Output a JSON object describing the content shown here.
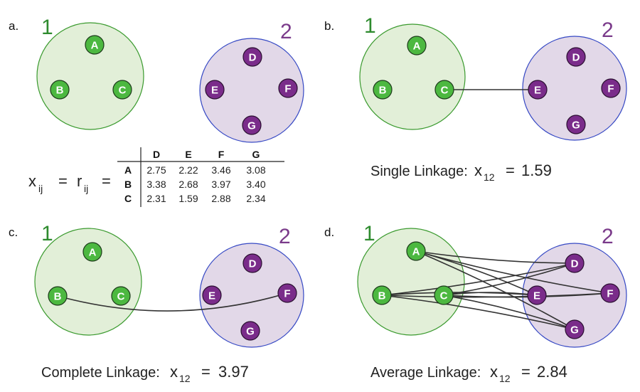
{
  "colors": {
    "cluster1_fill": "#e2efd8",
    "cluster1_stroke": "#3a9a2e",
    "cluster2_fill": "#e2d8e8",
    "cluster2_stroke": "#3548c4",
    "node1_fill": "#4cb840",
    "node2_fill": "#7a2c8a",
    "edge": "#333333",
    "label1": "#2e8b2e",
    "label2": "#7a3a8a"
  },
  "panels": {
    "a": {
      "label": "a.",
      "cluster1_label": "1",
      "cluster2_label": "2",
      "formula": {
        "x": "x",
        "x_sub": "ij",
        "equals": "=",
        "r": "r",
        "r_sub": "ij",
        "equals2": "="
      },
      "table": {
        "columns": [
          "D",
          "E",
          "F",
          "G"
        ],
        "rows": [
          {
            "label": "A",
            "values": [
              "2.75",
              "2.22",
              "3.46",
              "3.08"
            ]
          },
          {
            "label": "B",
            "values": [
              "3.38",
              "2.68",
              "3.97",
              "3.40"
            ]
          },
          {
            "label": "C",
            "values": [
              "2.31",
              "1.59",
              "2.88",
              "2.34"
            ]
          }
        ]
      }
    },
    "b": {
      "label": "b.",
      "cluster1_label": "1",
      "cluster2_label": "2",
      "caption_prefix": "Single Linkage:",
      "x": "x",
      "x_sub": "12",
      "eq": "=",
      "value": "1.59",
      "edges": [
        [
          "C",
          "E"
        ]
      ]
    },
    "c": {
      "label": "c.",
      "cluster1_label": "1",
      "cluster2_label": "2",
      "caption_prefix": "Complete Linkage:",
      "x": "x",
      "x_sub": "12",
      "eq": "=",
      "value": "3.97",
      "edges": [
        [
          "B",
          "F"
        ]
      ]
    },
    "d": {
      "label": "d.",
      "cluster1_label": "1",
      "cluster2_label": "2",
      "caption_prefix": "Average Linkage:",
      "x": "x",
      "x_sub": "12",
      "eq": "=",
      "value": "2.84",
      "edges": [
        [
          "A",
          "D"
        ],
        [
          "A",
          "E"
        ],
        [
          "A",
          "F"
        ],
        [
          "A",
          "G"
        ],
        [
          "B",
          "D"
        ],
        [
          "B",
          "E"
        ],
        [
          "B",
          "F"
        ],
        [
          "B",
          "G"
        ],
        [
          "C",
          "D"
        ],
        [
          "C",
          "E"
        ],
        [
          "C",
          "F"
        ],
        [
          "C",
          "G"
        ]
      ]
    }
  },
  "nodes": {
    "A": "A",
    "B": "B",
    "C": "C",
    "D": "D",
    "E": "E",
    "F": "F",
    "G": "G"
  }
}
